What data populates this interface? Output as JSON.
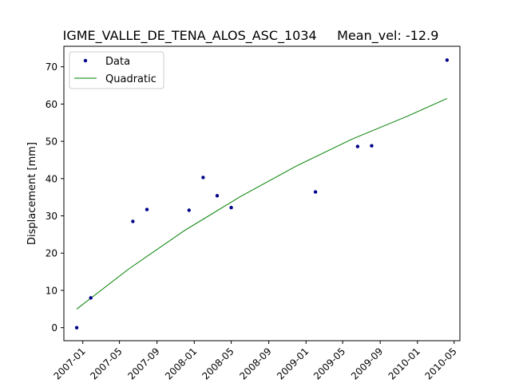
{
  "chart_data": {
    "type": "scatter",
    "title": "IGME_VALLE_DE_TENA_ALOS_ASC_1034     Mean_vel: -12.9",
    "xlabel": "",
    "ylabel": "Displacement [mm]",
    "x_tick_labels": [
      "2007-01",
      "2007-05",
      "2007-09",
      "2008-01",
      "2008-05",
      "2008-09",
      "2009-01",
      "2009-05",
      "2009-09",
      "2010-01",
      "2010-05"
    ],
    "y_tick_labels": [
      "0",
      "10",
      "20",
      "30",
      "40",
      "50",
      "60",
      "70"
    ],
    "xlim": [
      "2006-10-31",
      "2010-05-20"
    ],
    "ylim": [
      -3.5,
      75.5
    ],
    "grid": false,
    "legend_position": "top-left",
    "series": [
      {
        "name": "Data",
        "style": "markers",
        "color": "#00008b",
        "points": [
          {
            "x": "2006-12-12",
            "y": 0.0
          },
          {
            "x": "2007-01-27",
            "y": 8.0
          },
          {
            "x": "2007-06-14",
            "y": 28.5
          },
          {
            "x": "2007-07-30",
            "y": 31.7
          },
          {
            "x": "2007-12-15",
            "y": 31.5
          },
          {
            "x": "2008-01-30",
            "y": 40.3
          },
          {
            "x": "2008-03-16",
            "y": 35.4
          },
          {
            "x": "2008-05-01",
            "y": 32.2
          },
          {
            "x": "2009-02-01",
            "y": 36.4
          },
          {
            "x": "2009-06-19",
            "y": 48.6
          },
          {
            "x": "2009-08-04",
            "y": 48.8
          },
          {
            "x": "2010-04-08",
            "y": 71.8
          }
        ]
      },
      {
        "name": "Quadratic",
        "style": "line",
        "color": "#008000",
        "points": [
          {
            "x": "2006-12-12",
            "y": 5.0
          },
          {
            "x": "2007-06-01",
            "y": 15.8
          },
          {
            "x": "2007-12-01",
            "y": 26.1
          },
          {
            "x": "2008-06-01",
            "y": 35.2
          },
          {
            "x": "2008-12-01",
            "y": 43.4
          },
          {
            "x": "2009-06-01",
            "y": 50.6
          },
          {
            "x": "2009-12-01",
            "y": 56.8
          },
          {
            "x": "2010-04-08",
            "y": 61.5
          }
        ]
      }
    ]
  }
}
